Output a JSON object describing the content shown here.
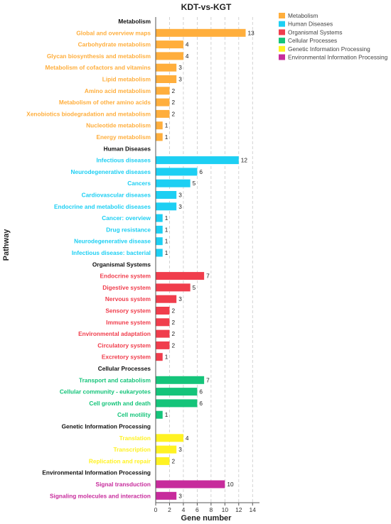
{
  "chart_data": {
    "type": "bar",
    "orientation": "horizontal",
    "title": "KDT-vs-KGT",
    "xlabel": "Gene number",
    "ylabel": "Pathway",
    "xlim": [
      0,
      15
    ],
    "xticks": [
      0,
      2,
      4,
      6,
      8,
      10,
      12,
      14
    ],
    "grid": "vertical dashed",
    "legend_position": "top-right",
    "series": [
      {
        "name": "Metabolism",
        "color": "#FFAE3C"
      },
      {
        "name": "Human Diseases",
        "color": "#1DCFF3"
      },
      {
        "name": "Organismal Systems",
        "color": "#F03D4C"
      },
      {
        "name": "Cellular Processes",
        "color": "#15C47A"
      },
      {
        "name": "Genetic Information Processing",
        "color": "#FFF222"
      },
      {
        "name": "Environmental Information Processing",
        "color": "#C72B9C"
      }
    ],
    "groups": [
      {
        "name": "Metabolism",
        "color": "#FFAE3C",
        "items": [
          {
            "label": "Global and overview maps",
            "value": 13
          },
          {
            "label": "Carbohydrate metabolism",
            "value": 4
          },
          {
            "label": "Glycan biosynthesis and metabolism",
            "value": 4
          },
          {
            "label": "Metabolism of cofactors and vitamins",
            "value": 3
          },
          {
            "label": "Lipid metabolism",
            "value": 3
          },
          {
            "label": "Amino acid metabolism",
            "value": 2
          },
          {
            "label": "Metabolism of other amino acids",
            "value": 2
          },
          {
            "label": "Xenobiotics biodegradation and metabolism",
            "value": 2
          },
          {
            "label": "Nucleotide metabolism",
            "value": 1
          },
          {
            "label": "Energy metabolism",
            "value": 1
          }
        ]
      },
      {
        "name": "Human Diseases",
        "color": "#1DCFF3",
        "items": [
          {
            "label": "Infectious diseases",
            "value": 12
          },
          {
            "label": "Neurodegenerative diseases",
            "value": 6
          },
          {
            "label": "Cancers",
            "value": 5
          },
          {
            "label": "Cardiovascular diseases",
            "value": 3
          },
          {
            "label": "Endocrine and metabolic diseases",
            "value": 3
          },
          {
            "label": "Cancer: overview",
            "value": 1
          },
          {
            "label": "Drug resistance",
            "value": 1
          },
          {
            "label": "Neurodegenerative disease",
            "value": 1
          },
          {
            "label": "Infectious disease: bacterial",
            "value": 1
          }
        ]
      },
      {
        "name": "Organismal Systems",
        "color": "#F03D4C",
        "items": [
          {
            "label": "Endocrine system",
            "value": 7
          },
          {
            "label": "Digestive system",
            "value": 5
          },
          {
            "label": "Nervous system",
            "value": 3
          },
          {
            "label": "Sensory system",
            "value": 2
          },
          {
            "label": "Immune system",
            "value": 2
          },
          {
            "label": "Environmental adaptation",
            "value": 2
          },
          {
            "label": "Circulatory system",
            "value": 2
          },
          {
            "label": "Excretory system",
            "value": 1
          }
        ]
      },
      {
        "name": "Cellular Processes",
        "color": "#15C47A",
        "items": [
          {
            "label": "Transport and catabolism",
            "value": 7
          },
          {
            "label": "Cellular community - eukaryotes",
            "value": 6
          },
          {
            "label": "Cell growth and death",
            "value": 6
          },
          {
            "label": "Cell motility",
            "value": 1
          }
        ]
      },
      {
        "name": "Genetic Information Processing",
        "color": "#FFF222",
        "items": [
          {
            "label": "Translation",
            "value": 4
          },
          {
            "label": "Transcription",
            "value": 3
          },
          {
            "label": "Replication and repair",
            "value": 2
          }
        ]
      },
      {
        "name": "Environmental Information Processing",
        "color": "#C72B9C",
        "items": [
          {
            "label": "Signal transduction",
            "value": 10
          },
          {
            "label": "Signaling molecules and interaction",
            "value": 3
          }
        ]
      }
    ]
  }
}
